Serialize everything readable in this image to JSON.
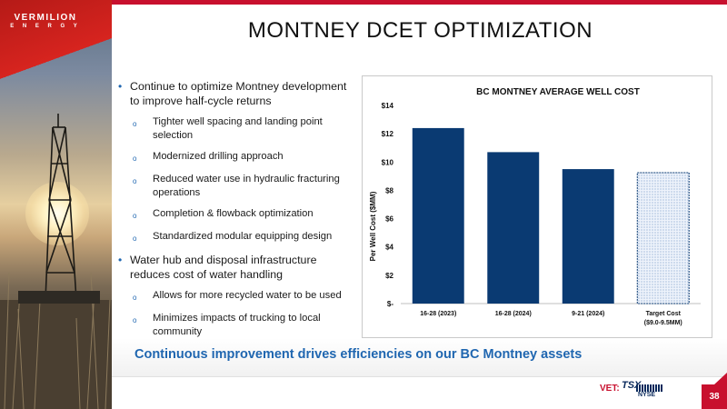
{
  "brand": {
    "name": "VERMILION",
    "sub": "E N E R G Y",
    "accent_red": "#c8102e",
    "accent_blue": "#1f66b0",
    "navy": "#0a3a72"
  },
  "slide": {
    "title": "MONTNEY DCET OPTIMIZATION",
    "page_number": "38"
  },
  "bullets": [
    {
      "text": "Continue to optimize Montney development to improve half-cycle returns",
      "subs": [
        "Tighter well spacing and landing point selection",
        "Modernized drilling approach",
        "Reduced water use in hydraulic fracturing operations",
        "Completion & flowback optimization",
        "Standardized modular equipping design"
      ]
    },
    {
      "text": "Water hub and disposal infrastructure reduces cost of water handling",
      "subs": [
        "Allows for more recycled water to be used",
        "Minimizes impacts of trucking to local community"
      ]
    }
  ],
  "tagline": "Continuous improvement drives efficiencies on our BC Montney assets",
  "footer": {
    "ticker_label": "VET:",
    "exchange1": "TSX",
    "exchange2": "NYSE"
  },
  "chart_data": {
    "type": "bar",
    "title": "BC MONTNEY AVERAGE WELL COST",
    "ylabel": "Per Well Cost ($MM)",
    "xlabel": "",
    "categories": [
      "16-28 (2023)",
      "16-28 (2024)",
      "9-21 (2024)",
      "Target Cost ($9.0-9.5MM)"
    ],
    "category_lines": [
      [
        "16-28 (2023)"
      ],
      [
        "16-28 (2024)"
      ],
      [
        "9-21 (2024)"
      ],
      [
        "Target Cost",
        "($9.0-9.5MM)"
      ]
    ],
    "values": [
      12.4,
      10.7,
      9.5,
      9.25
    ],
    "ylim": [
      0,
      14
    ],
    "yticks": [
      0,
      2,
      4,
      6,
      8,
      10,
      12,
      14
    ],
    "ytick_labels": [
      "$-",
      "$2",
      "$4",
      "$6",
      "$8",
      "$10",
      "$12",
      "$14"
    ],
    "bar_color": "#0a3a72",
    "target_fill": "dotted-light-blue",
    "grid": false,
    "legend": "none"
  }
}
